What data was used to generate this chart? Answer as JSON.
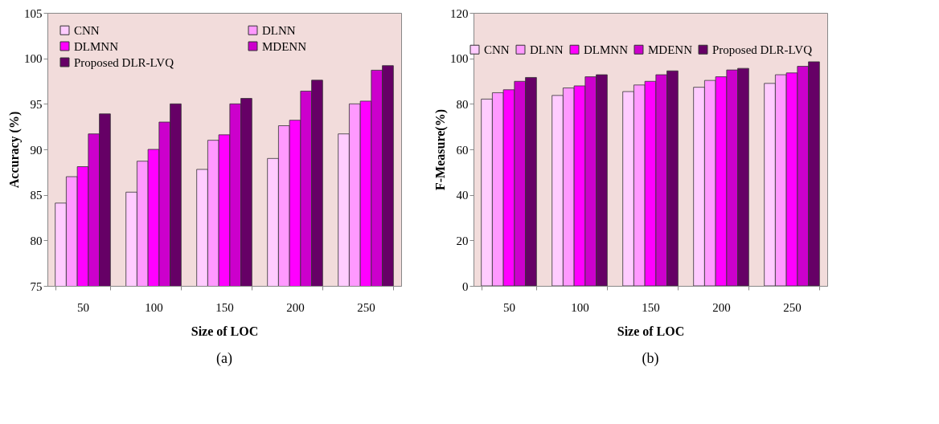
{
  "chart_data": [
    {
      "type": "bar",
      "xlabel": "Size of LOC",
      "ylabel": "Accuracy (%)",
      "categories": [
        "50",
        "100",
        "150",
        "200",
        "250"
      ],
      "ylim": [
        75,
        105
      ],
      "yticks": [
        75,
        80,
        85,
        90,
        95,
        100,
        105
      ],
      "legend": "top left",
      "grid": false,
      "annotations": [
        "(a)"
      ],
      "series": [
        {
          "name": "CNN",
          "color": "#ffccff",
          "values": [
            84.1,
            85.3,
            87.8,
            89.0,
            91.7
          ]
        },
        {
          "name": "DLNN",
          "color": "#ff99ff",
          "values": [
            87.0,
            88.7,
            91.0,
            92.6,
            95.0
          ]
        },
        {
          "name": "DLMNN",
          "color": "#ff00ff",
          "values": [
            88.1,
            90.0,
            91.6,
            93.2,
            95.3
          ]
        },
        {
          "name": "MDENN",
          "color": "#cc00cc",
          "values": [
            91.7,
            93.0,
            95.0,
            96.4,
            98.7
          ]
        },
        {
          "name": "Proposed DLR-LVQ",
          "color": "#660066",
          "values": [
            93.9,
            95.0,
            95.6,
            97.6,
            99.2
          ]
        }
      ]
    },
    {
      "type": "bar",
      "xlabel": "Size of LOC",
      "ylabel": "F-Measure(%)",
      "categories": [
        "50",
        "100",
        "150",
        "200",
        "250"
      ],
      "ylim": [
        0,
        120
      ],
      "yticks": [
        0,
        20,
        40,
        60,
        80,
        100,
        120
      ],
      "legend": "top",
      "grid": false,
      "annotations": [
        "(b)"
      ],
      "series": [
        {
          "name": "CNN",
          "color": "#ffccff",
          "values": [
            82.1,
            83.7,
            85.4,
            87.3,
            89.0
          ]
        },
        {
          "name": "DLNN",
          "color": "#ff99ff",
          "values": [
            84.9,
            87.0,
            88.3,
            90.3,
            92.8
          ]
        },
        {
          "name": "DLMNN",
          "color": "#ff00ff",
          "values": [
            86.2,
            87.9,
            89.9,
            91.9,
            93.6
          ]
        },
        {
          "name": "MDENN",
          "color": "#cc00cc",
          "values": [
            89.9,
            91.9,
            92.8,
            94.9,
            96.5
          ]
        },
        {
          "name": "Proposed DLR-LVQ",
          "color": "#660066",
          "values": [
            91.6,
            92.8,
            94.5,
            95.6,
            98.5
          ]
        }
      ]
    }
  ]
}
